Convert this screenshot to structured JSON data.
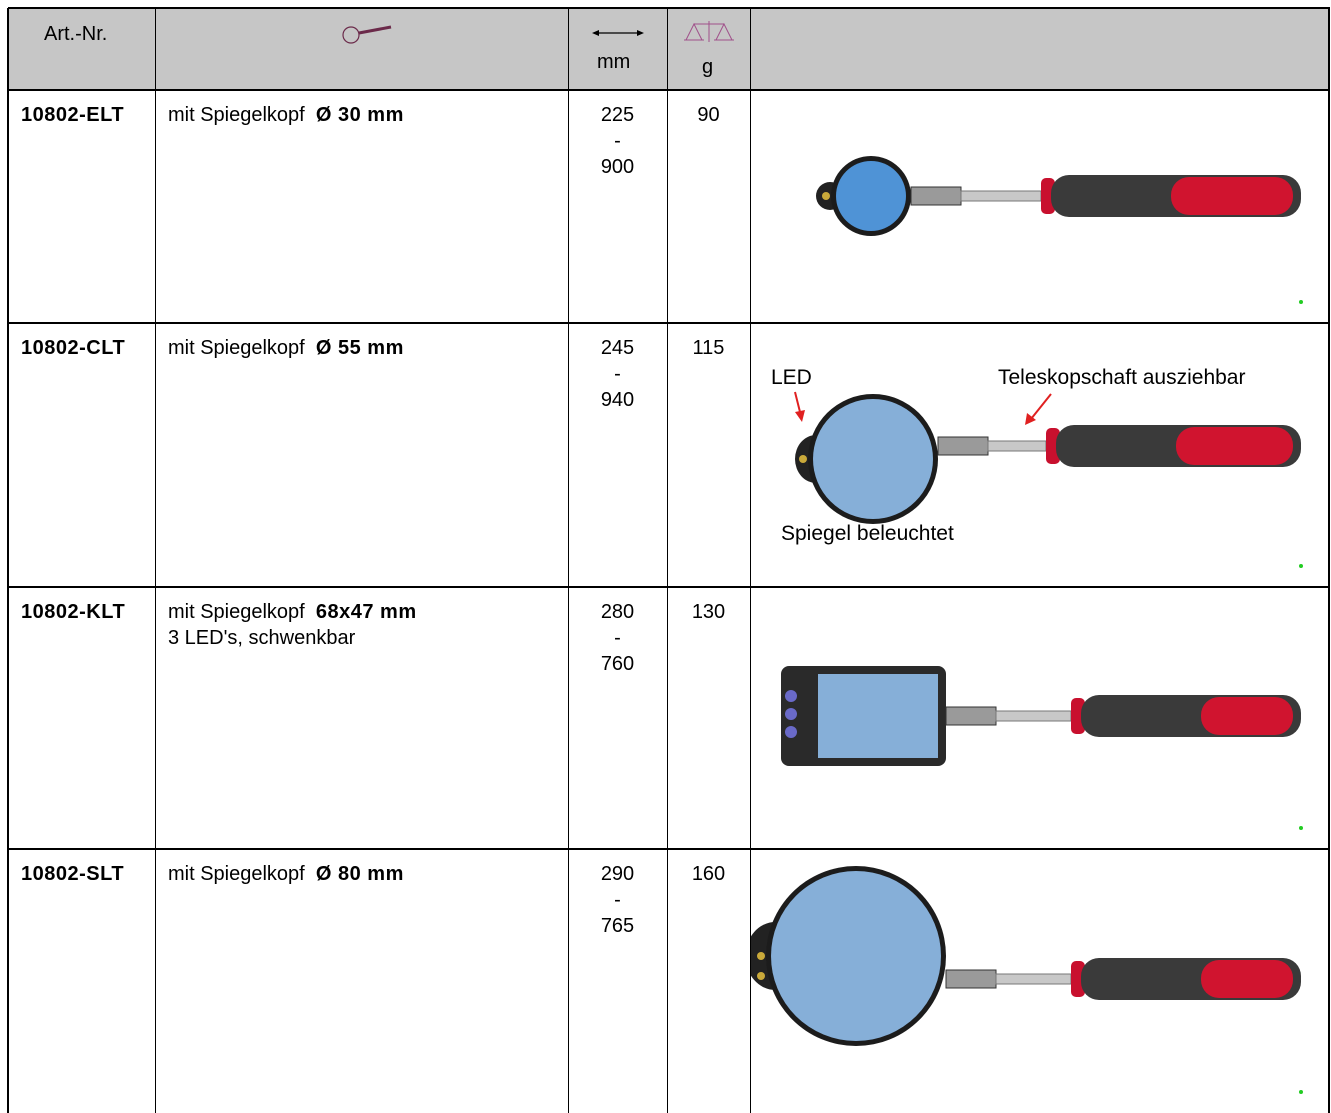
{
  "header": {
    "art_nr": "Art.-Nr.",
    "length_unit": "mm",
    "weight_unit": "g"
  },
  "rows": [
    {
      "art_nr": "10802-ELT",
      "description": "mit Spiegelkopf",
      "size": "Ø 30 mm",
      "length": [
        225,
        "-",
        900
      ],
      "weight": 90
    },
    {
      "art_nr": "10802-CLT",
      "description": "mit Spiegelkopf",
      "size": "Ø 55 mm",
      "length": [
        245,
        "-",
        940
      ],
      "weight": 115,
      "annotations": {
        "led": "LED",
        "shaft": "Teleskopschaft ausziehbar",
        "mirror": "Spiegel beleuchtet"
      }
    },
    {
      "art_nr": "10802-KLT",
      "description": "mit Spiegelkopf",
      "size": "68x47 mm",
      "note": "3 LED's, schwenkbar",
      "length": [
        280,
        "-",
        760
      ],
      "weight": 130
    },
    {
      "art_nr": "10802-SLT",
      "description": "mit Spiegelkopf",
      "size": "Ø 80 mm",
      "length": [
        290,
        "-",
        765
      ],
      "weight": 160
    }
  ]
}
